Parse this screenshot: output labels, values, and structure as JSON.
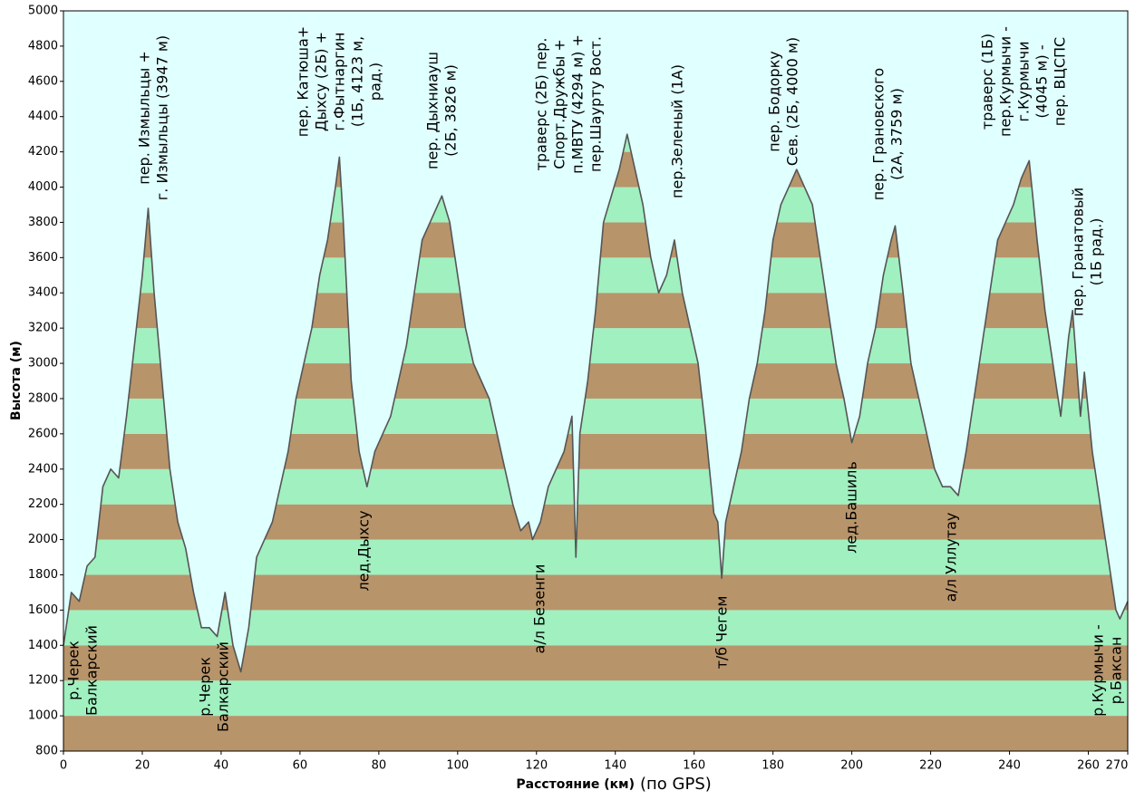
{
  "chart_data": {
    "type": "area",
    "ylabel": "Высота (м)",
    "xlabel": "Расстояние  (км)",
    "xlabel_note": "(по GPS)",
    "x": [
      0,
      2,
      4,
      6,
      8,
      10,
      12,
      14,
      16,
      18,
      20,
      21.5,
      23,
      25,
      27,
      29,
      31,
      33,
      35,
      37,
      39,
      41,
      43,
      45,
      47,
      49,
      51,
      53,
      55,
      57,
      59,
      61,
      63,
      65,
      67,
      69,
      70,
      71,
      73,
      75,
      77,
      79,
      81,
      83,
      85,
      87,
      89,
      91,
      93,
      95,
      96,
      98,
      100,
      102,
      104,
      106,
      108,
      110,
      112,
      114,
      116,
      118,
      119,
      121,
      123,
      125,
      127,
      129,
      130,
      131,
      133,
      135,
      137,
      139,
      141,
      143,
      145,
      147,
      149,
      151,
      153,
      155,
      157,
      159,
      161,
      163,
      165,
      166,
      167,
      168,
      170,
      172,
      174,
      176,
      178,
      180,
      182,
      184,
      186,
      188,
      190,
      192,
      194,
      196,
      198,
      200,
      202,
      204,
      206,
      208,
      210,
      211,
      213,
      215,
      217,
      219,
      221,
      223,
      225,
      227,
      229,
      231,
      233,
      235,
      237,
      239,
      241,
      243,
      245,
      247,
      249,
      251,
      253,
      255,
      256,
      258,
      259,
      261,
      263,
      265,
      267,
      268,
      270
    ],
    "values": [
      1400,
      1700,
      1650,
      1850,
      1900,
      2300,
      2400,
      2350,
      2700,
      3100,
      3500,
      3880,
      3400,
      2900,
      2400,
      2100,
      1950,
      1700,
      1500,
      1500,
      1450,
      1700,
      1400,
      1250,
      1500,
      1900,
      2000,
      2100,
      2300,
      2500,
      2800,
      3000,
      3200,
      3500,
      3700,
      4000,
      4170,
      3800,
      2900,
      2500,
      2300,
      2500,
      2600,
      2700,
      2900,
      3100,
      3400,
      3700,
      3800,
      3900,
      3950,
      3800,
      3500,
      3200,
      3000,
      2900,
      2800,
      2600,
      2400,
      2200,
      2050,
      2100,
      2000,
      2100,
      2300,
      2400,
      2500,
      2700,
      1900,
      2600,
      2900,
      3300,
      3800,
      3950,
      4100,
      4300,
      4100,
      3900,
      3600,
      3400,
      3500,
      3700,
      3400,
      3200,
      3000,
      2600,
      2150,
      2100,
      1780,
      2100,
      2300,
      2500,
      2800,
      3000,
      3300,
      3700,
      3900,
      4000,
      4100,
      4000,
      3900,
      3600,
      3300,
      3000,
      2800,
      2550,
      2700,
      3000,
      3200,
      3500,
      3700,
      3780,
      3400,
      3000,
      2800,
      2600,
      2400,
      2300,
      2300,
      2250,
      2500,
      2800,
      3100,
      3400,
      3700,
      3800,
      3900,
      4050,
      4150,
      3700,
      3300,
      3000,
      2700,
      3150,
      3300,
      2700,
      2950,
      2500,
      2200,
      1900,
      1600,
      1550,
      1650
    ],
    "line_color": "#555555",
    "band_colors": [
      "#b8946a",
      "#a0f0c0"
    ],
    "background": "#e0ffff",
    "xlim": [
      0,
      270
    ],
    "ylim": [
      800,
      5000
    ],
    "xticks": [
      0,
      20,
      40,
      60,
      80,
      100,
      120,
      140,
      160,
      180,
      200,
      220,
      240,
      260,
      270
    ],
    "yticks": [
      800,
      1000,
      1200,
      1400,
      1600,
      1800,
      2000,
      2200,
      2400,
      2600,
      2800,
      3000,
      3200,
      3400,
      3600,
      3800,
      4000,
      4200,
      4400,
      4600,
      4800,
      5000
    ],
    "annotations": [
      {
        "lines": [
          "пер. Измыльцы +",
          "г. Измыльцы (3947 м)"
        ]
      },
      {
        "lines": [
          "пер. Катюша+",
          "Дыхсу (2Б) +",
          "г.Фытнаргин",
          "(1Б, 4123 м,",
          "рад.)"
        ]
      },
      {
        "lines": [
          "пер. Дыхниауш",
          "(2Б, 3826 м)"
        ]
      },
      {
        "lines": [
          "траверс (2Б) пер.",
          "Спорт.Дружбы +",
          "п.МВТУ (4294 м) +",
          "пер.Шаурту Вост."
        ]
      },
      {
        "lines": [
          "пер.Зеленый (1А)"
        ]
      },
      {
        "lines": [
          "пер. Бодорку",
          "Сев. (2Б, 4000 м)"
        ]
      },
      {
        "lines": [
          "пер. Грановского",
          "(2А, 3759 м)"
        ]
      },
      {
        "lines": [
          "траверс (1Б)",
          "пер.Курмычи -",
          "г.Курмычи",
          "(4045 м) -",
          "пер. ВЦСПС"
        ]
      },
      {
        "lines": [
          "пер. Гранатовый",
          "(1Б рад.)"
        ]
      },
      {
        "lines": [
          "р.Черек",
          "Балкарский"
        ]
      },
      {
        "lines": [
          "р.Черек",
          "Балкарский"
        ]
      },
      {
        "lines": [
          "лед.Дыхсу"
        ]
      },
      {
        "lines": [
          "а/л Безенги"
        ]
      },
      {
        "lines": [
          "т/б Чегем"
        ]
      },
      {
        "lines": [
          "лед.Башиль"
        ]
      },
      {
        "lines": [
          "а/л Уллутау"
        ]
      },
      {
        "lines": [
          "р.Курмычи -",
          "р.Баксан"
        ]
      }
    ]
  }
}
